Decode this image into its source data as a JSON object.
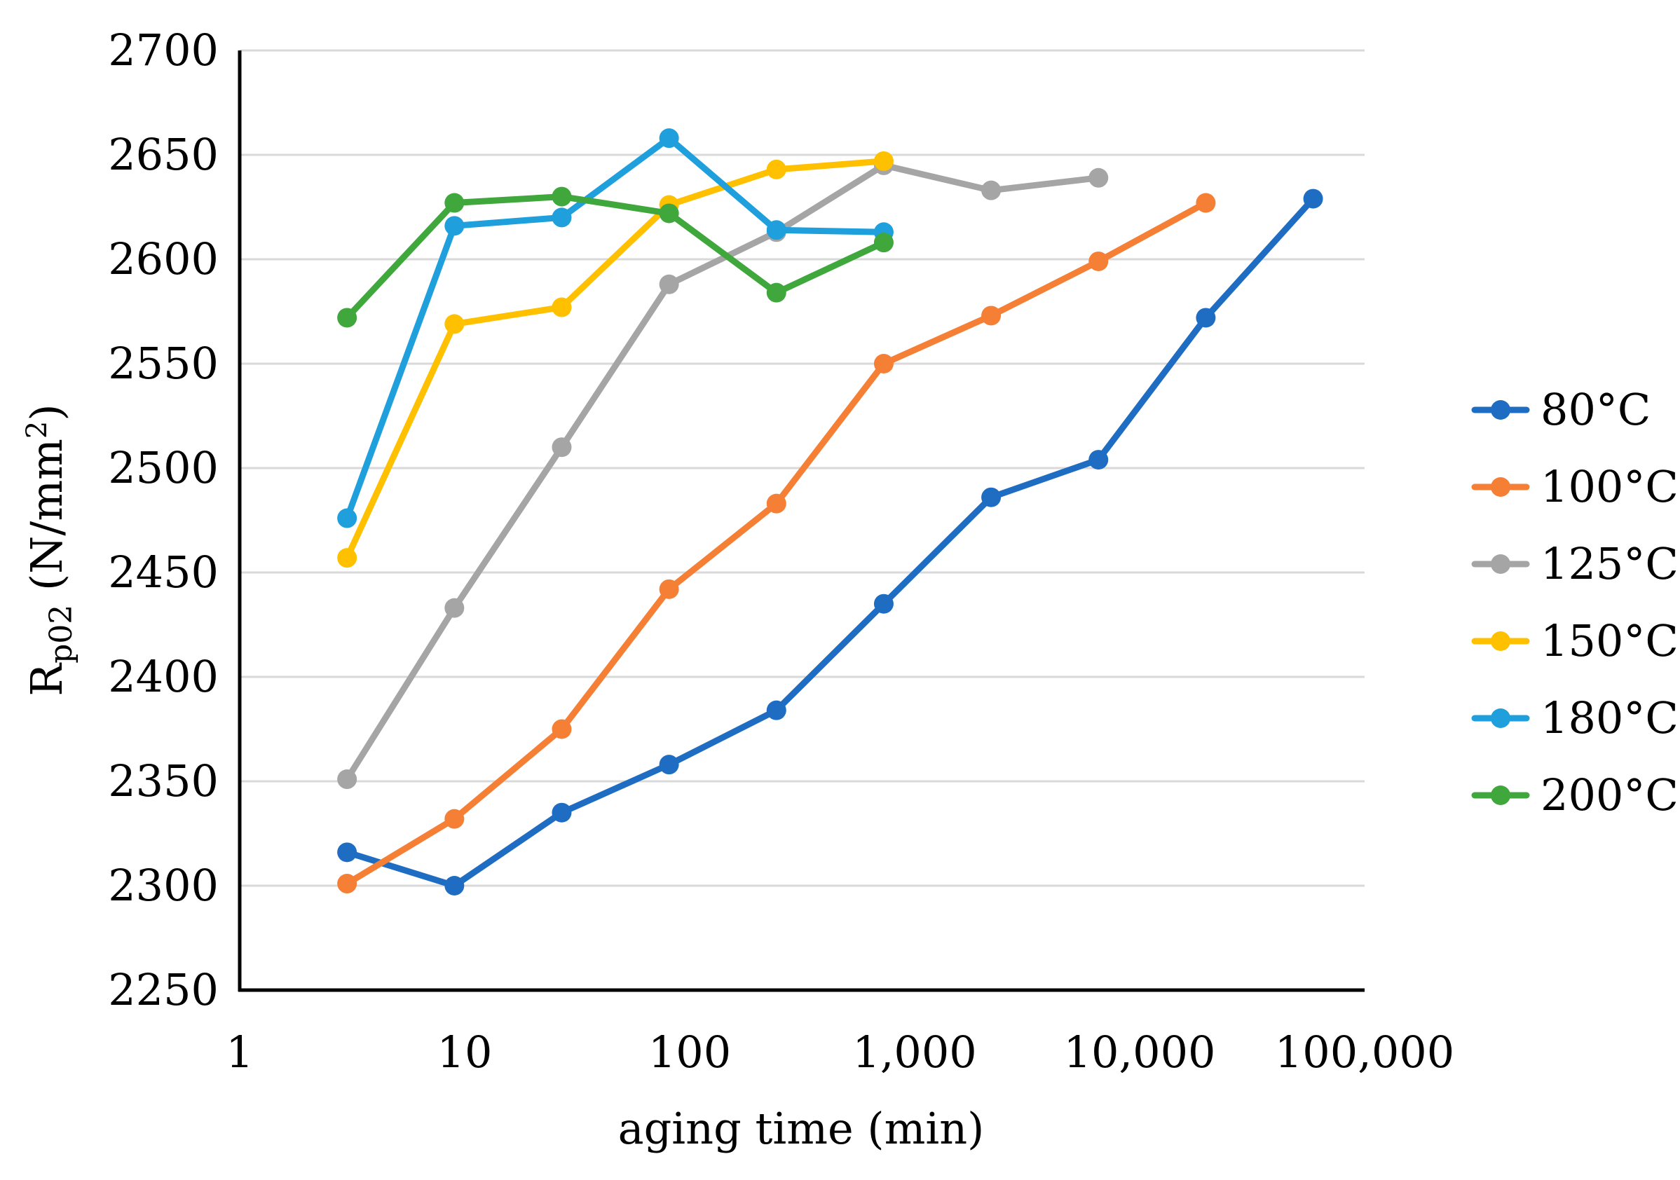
{
  "chart_data": {
    "type": "line",
    "title": "",
    "xlabel": "aging time (min)",
    "ylabel": {
      "base": "R",
      "sub": "p02",
      "unit_open": " (N/mm",
      "sup": "2",
      "unit_close": ")"
    },
    "x_scale": "log",
    "xlim": [
      1,
      100000
    ],
    "ylim": [
      2250,
      2700
    ],
    "x_ticks": [
      1,
      10,
      100,
      1000,
      10000,
      100000
    ],
    "x_tick_labels": [
      "1",
      "10",
      "100",
      "1,000",
      "10,000",
      "100,000"
    ],
    "y_ticks": [
      2250,
      2300,
      2350,
      2400,
      2450,
      2500,
      2550,
      2600,
      2650,
      2700
    ],
    "y_tick_labels": [
      "2250",
      "2300",
      "2350",
      "2400",
      "2450",
      "2500",
      "2550",
      "2600",
      "2650",
      "2700"
    ],
    "grid": true,
    "legend_position": "right",
    "series": [
      {
        "name": "80°C",
        "color": "#1F6DC2",
        "x": [
          3,
          9,
          27,
          81,
          243,
          729,
          2187,
          6561,
          19683,
          59049
        ],
        "y": [
          2316,
          2300,
          2335,
          2358,
          2384,
          2435,
          2486,
          2504,
          2572,
          2629
        ]
      },
      {
        "name": "100°C",
        "color": "#F57F35",
        "x": [
          3,
          9,
          27,
          81,
          243,
          729,
          2187,
          6561,
          19683
        ],
        "y": [
          2301,
          2332,
          2375,
          2442,
          2483,
          2550,
          2573,
          2599,
          2627
        ]
      },
      {
        "name": "125°C",
        "color": "#A5A5A5",
        "x": [
          3,
          9,
          27,
          81,
          243,
          729,
          2187,
          6561
        ],
        "y": [
          2351,
          2433,
          2510,
          2588,
          2613,
          2645,
          2633,
          2639
        ]
      },
      {
        "name": "150°C",
        "color": "#FFC000",
        "x": [
          3,
          9,
          27,
          81,
          243,
          729
        ],
        "y": [
          2457,
          2569,
          2577,
          2626,
          2643,
          2647
        ]
      },
      {
        "name": "180°C",
        "color": "#1FA0DD",
        "x": [
          3,
          9,
          27,
          81,
          243,
          729
        ],
        "y": [
          2476,
          2616,
          2620,
          2658,
          2614,
          2613
        ]
      },
      {
        "name": "200°C",
        "color": "#3FA73B",
        "x": [
          3,
          9,
          27,
          81,
          243,
          729
        ],
        "y": [
          2572,
          2627,
          2630,
          2622,
          2584,
          2608
        ]
      }
    ]
  }
}
